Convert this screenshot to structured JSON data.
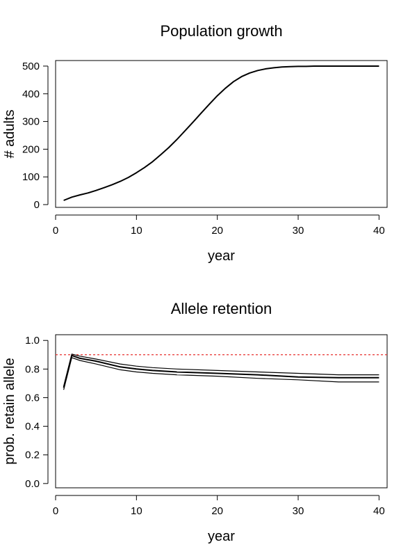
{
  "chart_data": [
    {
      "type": "line",
      "title": "Population growth",
      "xlabel": "year",
      "ylabel": "# adults",
      "xlim": [
        0,
        41
      ],
      "ylim": [
        -10,
        520
      ],
      "xticks": [
        0,
        10,
        20,
        30,
        40
      ],
      "yticks": [
        0,
        100,
        200,
        300,
        400,
        500
      ],
      "grid": false,
      "series": [
        {
          "color": "#000000",
          "x": [
            1,
            2,
            3,
            4,
            5,
            6,
            7,
            8,
            9,
            10,
            11,
            12,
            13,
            14,
            15,
            16,
            17,
            18,
            19,
            20,
            21,
            22,
            23,
            24,
            25,
            26,
            27,
            28,
            29,
            30,
            31,
            32,
            33,
            34,
            35,
            36,
            37,
            38,
            39,
            40
          ],
          "values": [
            15,
            27,
            35,
            42,
            51,
            61,
            72,
            84,
            98,
            115,
            134,
            155,
            180,
            206,
            235,
            266,
            298,
            330,
            362,
            393,
            420,
            444,
            462,
            475,
            484,
            490,
            494,
            497,
            498,
            499,
            499,
            500,
            500,
            500,
            500,
            500,
            500,
            500,
            500,
            500
          ]
        }
      ]
    },
    {
      "type": "line",
      "title": "Allele retention",
      "xlabel": "year",
      "ylabel": "prob. retain allele",
      "xlim": [
        0,
        41
      ],
      "ylim": [
        -0.03,
        1.04
      ],
      "xticks": [
        0,
        10,
        20,
        30,
        40
      ],
      "yticks": [
        0.0,
        0.2,
        0.4,
        0.6,
        0.8,
        1.0
      ],
      "ytick_labels": [
        "0.0",
        "0.2",
        "0.4",
        "0.6",
        "0.8",
        "1.0"
      ],
      "grid": false,
      "reference_line": {
        "y": 0.9,
        "color": "#e8312f",
        "style": "dashed"
      },
      "series": [
        {
          "color": "#000000",
          "x": [
            1,
            2,
            3,
            5,
            8,
            10,
            12,
            15,
            20,
            25,
            30,
            35,
            40
          ],
          "values": [
            0.68,
            0.905,
            0.89,
            0.87,
            0.835,
            0.82,
            0.81,
            0.8,
            0.79,
            0.78,
            0.77,
            0.76,
            0.76
          ]
        },
        {
          "color": "#000000",
          "x": [
            1,
            2,
            3,
            5,
            8,
            10,
            12,
            15,
            20,
            25,
            30,
            35,
            40
          ],
          "values": [
            0.67,
            0.895,
            0.875,
            0.855,
            0.815,
            0.8,
            0.79,
            0.78,
            0.77,
            0.76,
            0.745,
            0.74,
            0.74
          ]
        },
        {
          "color": "#000000",
          "x": [
            1,
            2,
            3,
            5,
            8,
            10,
            12,
            15,
            20,
            25,
            30,
            35,
            40
          ],
          "values": [
            0.655,
            0.88,
            0.86,
            0.835,
            0.795,
            0.78,
            0.77,
            0.76,
            0.75,
            0.735,
            0.725,
            0.71,
            0.71
          ]
        }
      ]
    }
  ]
}
